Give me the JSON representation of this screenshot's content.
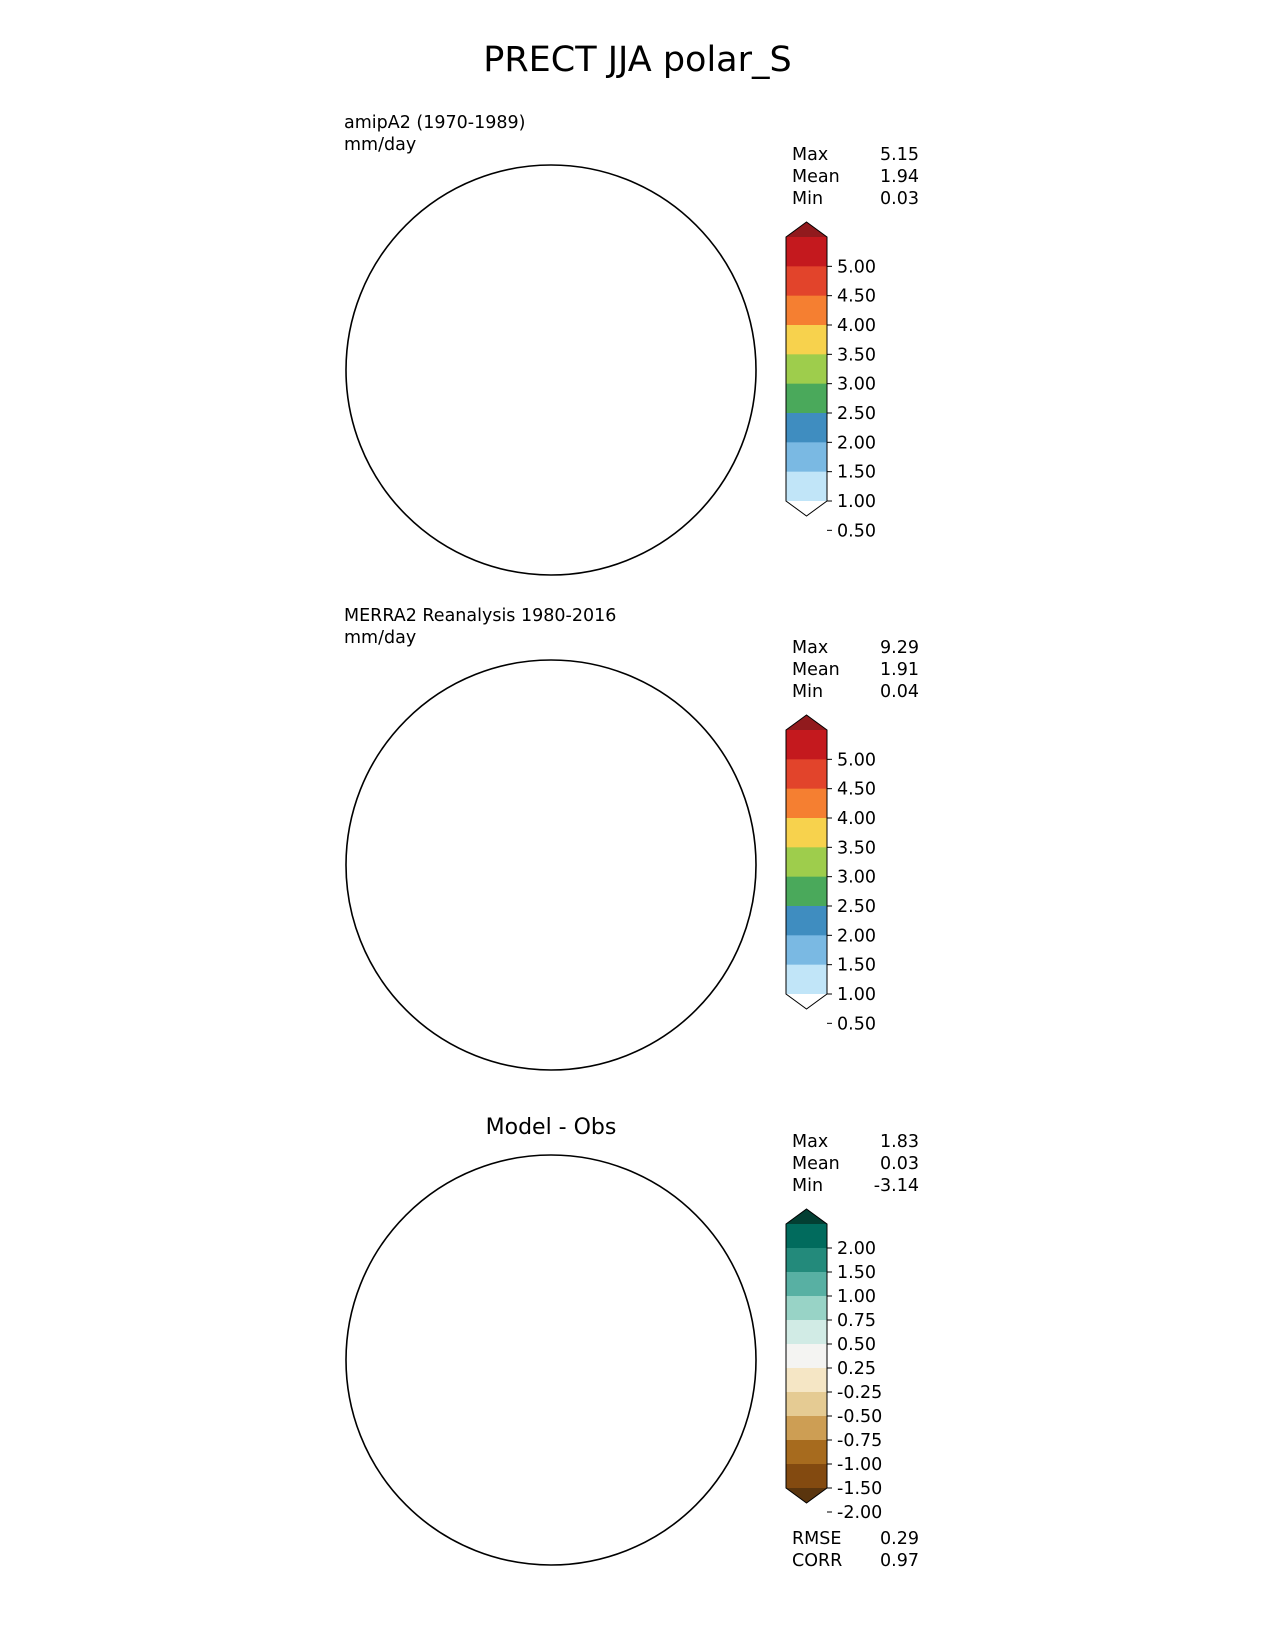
{
  "title": "PRECT JJA polar_S",
  "panels": [
    {
      "label_line1": "amipA2 (1970-1989)",
      "label_line2": "mm/day",
      "stats": [
        {
          "label": "Max",
          "value": "5.15"
        },
        {
          "label": "Mean",
          "value": "1.94"
        },
        {
          "label": "Min",
          "value": "0.03"
        }
      ]
    },
    {
      "label_line1": "MERRA2 Reanalysis 1980-2016",
      "label_line2": "mm/day",
      "stats": [
        {
          "label": "Max",
          "value": "9.29"
        },
        {
          "label": "Mean",
          "value": "1.91"
        },
        {
          "label": "Min",
          "value": "0.04"
        }
      ]
    },
    {
      "title": "Model - Obs",
      "stats": [
        {
          "label": "Max",
          "value": "1.83"
        },
        {
          "label": "Mean",
          "value": "0.03"
        },
        {
          "label": "Min",
          "value": "-3.14"
        }
      ],
      "metrics": [
        {
          "label": "RMSE",
          "value": "0.29"
        },
        {
          "label": "CORR",
          "value": "0.97"
        }
      ]
    }
  ],
  "colorbar_precip": {
    "ticks": [
      "5.00",
      "4.50",
      "4.00",
      "3.50",
      "3.00",
      "2.50",
      "2.00",
      "1.50",
      "1.00",
      "0.50"
    ],
    "colors_top_to_bottom": [
      "#911a1d",
      "#c4191e",
      "#e2442b",
      "#f57f31",
      "#f7d24d",
      "#9ecd4c",
      "#4aa95b",
      "#3f8dc0",
      "#7ab9e3",
      "#c1e5f8",
      "#ffffff"
    ]
  },
  "colorbar_diff": {
    "ticks": [
      "2.00",
      "1.50",
      "1.00",
      "0.75",
      "0.50",
      "0.25",
      "-0.25",
      "-0.50",
      "-0.75",
      "-1.00",
      "-1.50",
      "-2.00"
    ],
    "colors_top_to_bottom": [
      "#033f33",
      "#016b5d",
      "#238a7b",
      "#58b0a3",
      "#98d3c6",
      "#d1ebe5",
      "#f4f4f2",
      "#f5e6c5",
      "#e5cb93",
      "#cd9e54",
      "#a76b1e",
      "#834a10",
      "#5a350e"
    ]
  },
  "chart_data": {
    "type": "heatmap",
    "projection": "south polar stereographic",
    "maps": [
      {
        "name": "amipA2 (1970-1989)",
        "units": "mm/day",
        "max": 5.15,
        "mean": 1.94,
        "min": 0.03
      },
      {
        "name": "MERRA2 Reanalysis 1980-2016",
        "units": "mm/day",
        "max": 9.29,
        "mean": 1.91,
        "min": 0.04
      },
      {
        "name": "Model - Obs",
        "max": 1.83,
        "mean": 0.03,
        "min": -3.14,
        "rmse": 0.29,
        "corr": 0.97
      }
    ]
  }
}
